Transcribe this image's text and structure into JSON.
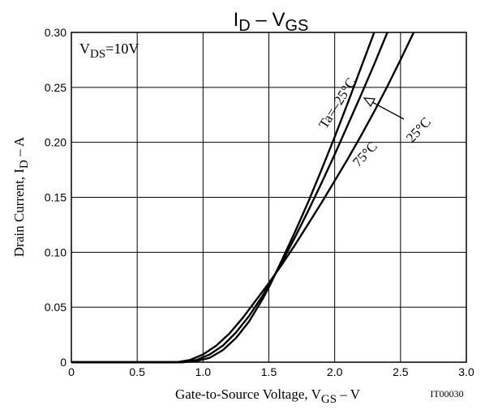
{
  "chart_data": {
    "type": "line",
    "title": {
      "main": "I",
      "main_sub": "D",
      "dash": " – ",
      "v": "V",
      "v_sub": "GS"
    },
    "xlabel": {
      "text": "Gate-to-Source Voltage, V",
      "sub": "GS",
      "unit": " – V"
    },
    "ylabel": {
      "text": "Drain Current, I",
      "sub": "D",
      "unit": " – A"
    },
    "xlim": [
      0,
      3.0
    ],
    "ylim": [
      0,
      0.3
    ],
    "x_ticks": [
      "0",
      "0.5",
      "1.0",
      "1.5",
      "2.0",
      "2.5",
      "3.0"
    ],
    "y_ticks": [
      "0",
      "0.05",
      "0.10",
      "0.15",
      "0.20",
      "0.25",
      "0.30"
    ],
    "x_tick_values": [
      0,
      0.5,
      1.0,
      1.5,
      2.0,
      2.5,
      3.0
    ],
    "y_tick_values": [
      0,
      0.05,
      0.1,
      0.15,
      0.2,
      0.25,
      0.3
    ],
    "grid": true,
    "condition": {
      "text": "V",
      "sub": "DS",
      "value": "=10V"
    },
    "figure_code": "IT00030",
    "series": [
      {
        "name": "Ta=–25°C",
        "x": [
          0,
          0.5,
          0.85,
          0.95,
          1.05,
          1.15,
          1.25,
          1.35,
          1.45,
          1.5,
          1.6,
          1.7,
          1.8,
          1.9,
          2.0,
          2.1,
          2.2,
          2.3
        ],
        "y": [
          0,
          0,
          0,
          0.001,
          0.004,
          0.011,
          0.022,
          0.037,
          0.057,
          0.068,
          0.093,
          0.119,
          0.146,
          0.175,
          0.205,
          0.236,
          0.268,
          0.3
        ]
      },
      {
        "name": "25°C",
        "x": [
          0,
          0.5,
          0.85,
          0.95,
          1.05,
          1.15,
          1.25,
          1.35,
          1.45,
          1.5,
          1.6,
          1.7,
          1.8,
          1.9,
          2.0,
          2.1,
          2.2,
          2.3,
          2.4
        ],
        "y": [
          0,
          0,
          0,
          0.002,
          0.007,
          0.015,
          0.027,
          0.042,
          0.06,
          0.07,
          0.091,
          0.114,
          0.138,
          0.163,
          0.189,
          0.216,
          0.243,
          0.271,
          0.3
        ]
      },
      {
        "name": "75°C",
        "x": [
          0,
          0.5,
          0.8,
          0.9,
          1.0,
          1.1,
          1.2,
          1.3,
          1.4,
          1.5,
          1.6,
          1.7,
          1.8,
          1.9,
          2.0,
          2.1,
          2.2,
          2.3,
          2.4,
          2.5,
          2.6
        ],
        "y": [
          0,
          0,
          0,
          0.002,
          0.007,
          0.015,
          0.026,
          0.04,
          0.056,
          0.072,
          0.089,
          0.107,
          0.126,
          0.145,
          0.165,
          0.185,
          0.206,
          0.228,
          0.251,
          0.275,
          0.3
        ]
      }
    ],
    "annotations": [
      {
        "label": "Ta=–25°C",
        "series": 0
      },
      {
        "label": "25°C",
        "series": 1
      },
      {
        "label": "75°C",
        "series": 2
      }
    ]
  }
}
